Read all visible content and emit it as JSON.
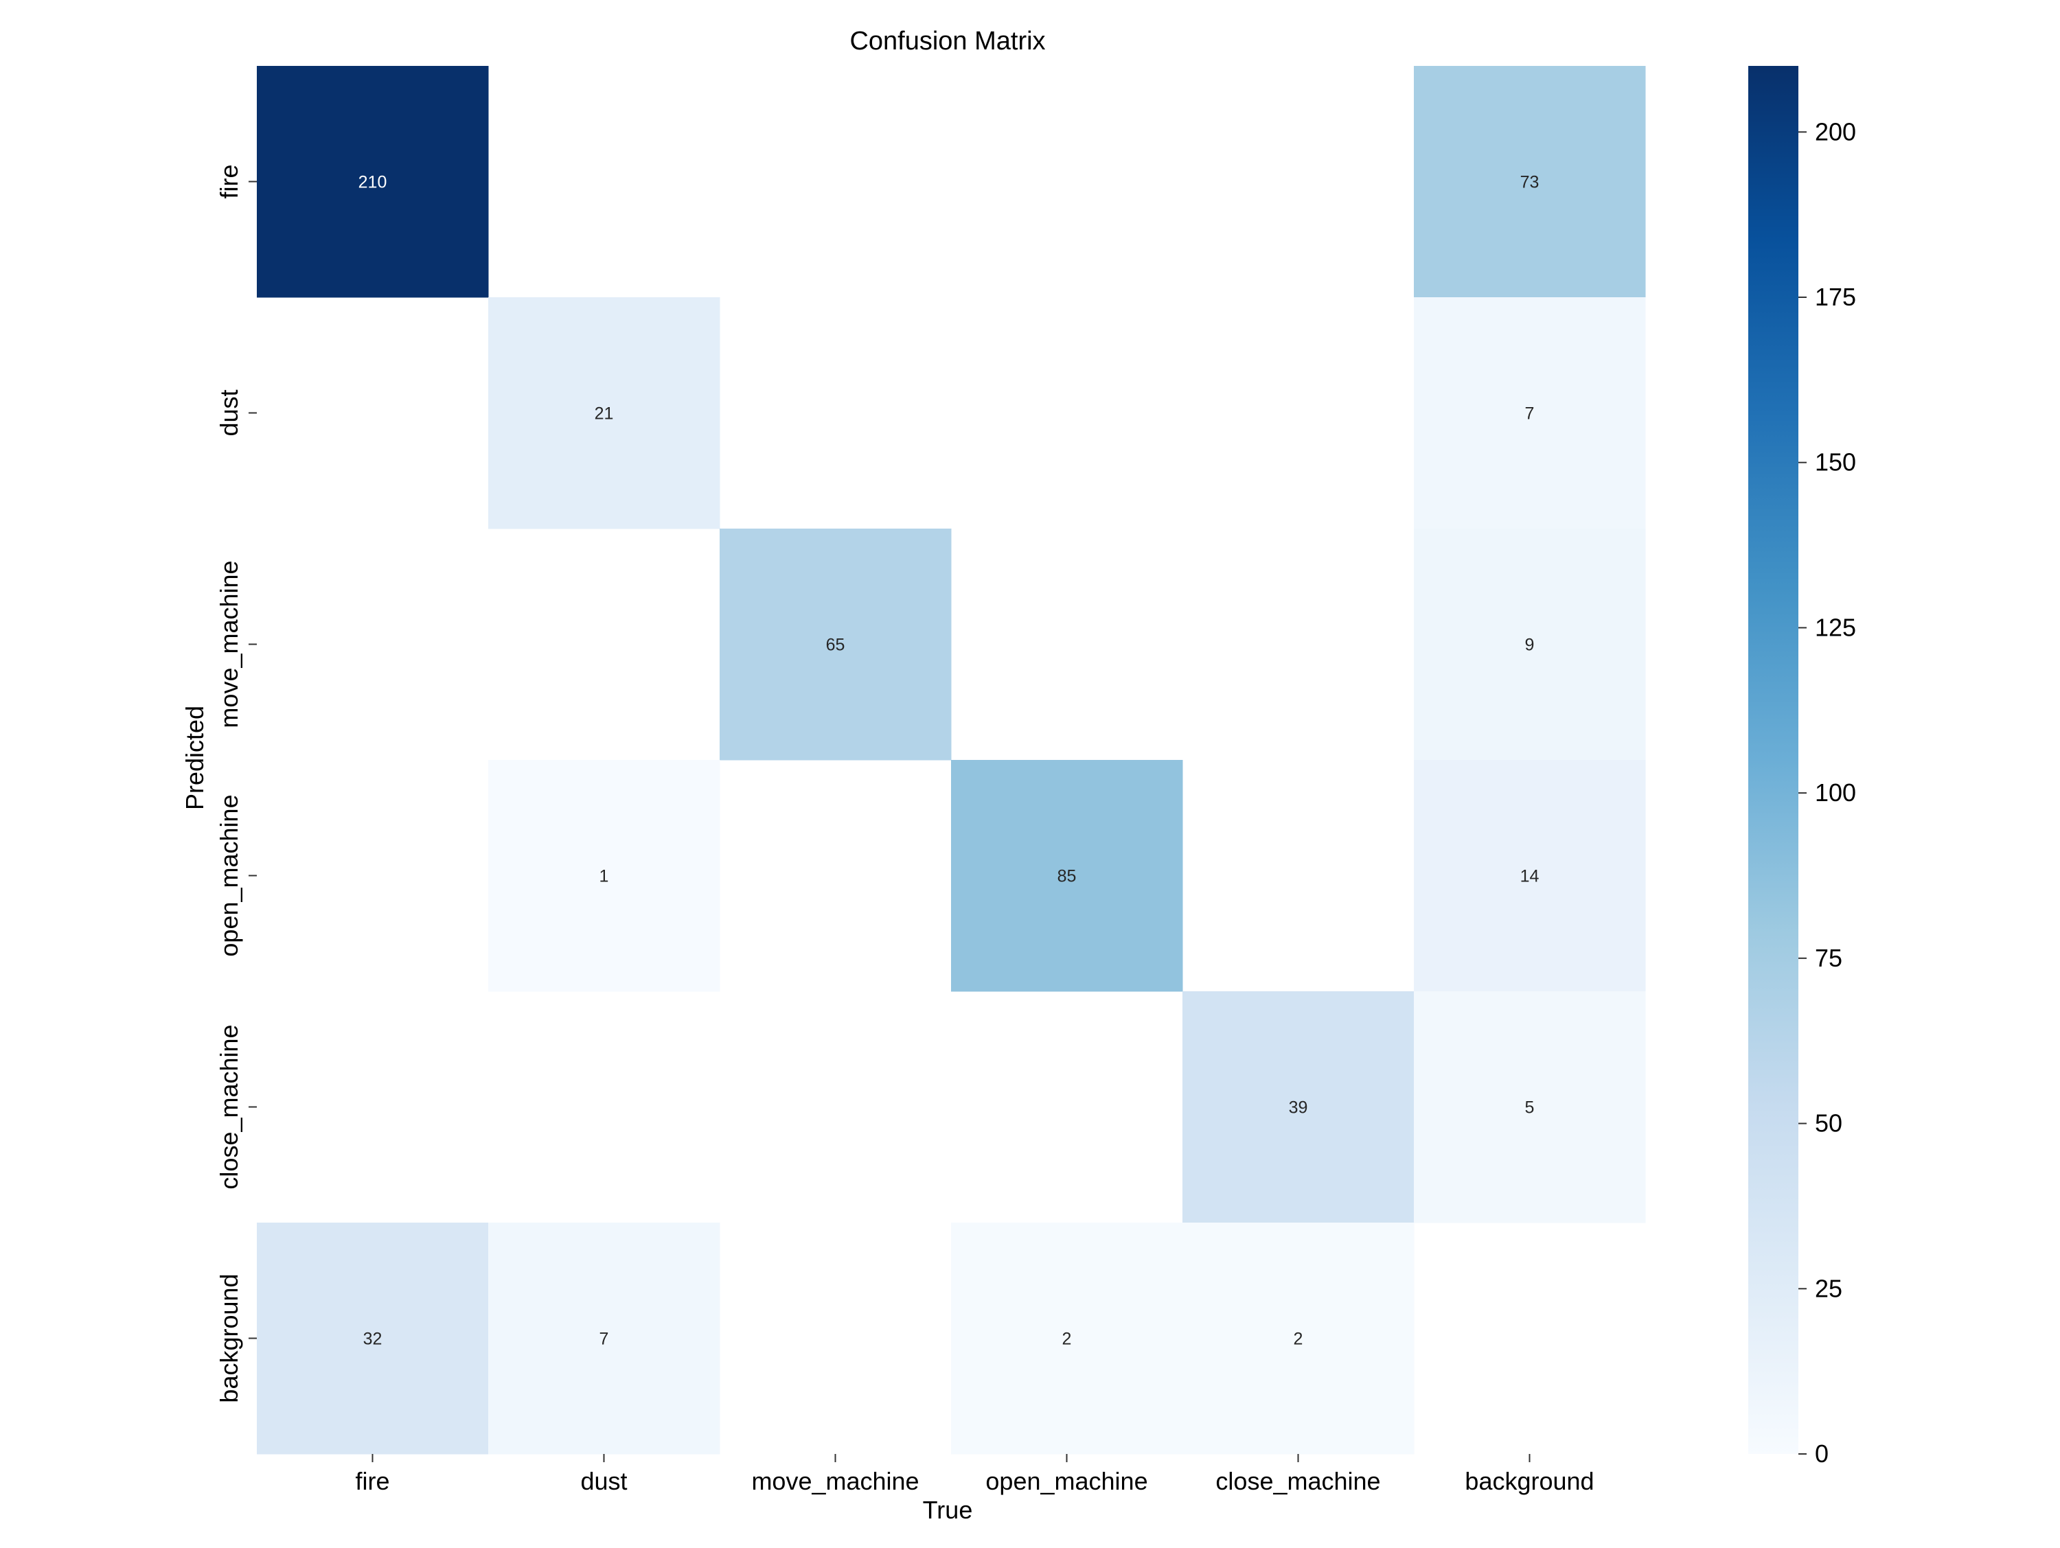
{
  "chart_data": {
    "type": "heatmap",
    "title": "Confusion Matrix",
    "xlabel": "True",
    "ylabel": "Predicted",
    "x_categories": [
      "fire",
      "dust",
      "move_machine",
      "open_machine",
      "close_machine",
      "background"
    ],
    "y_categories": [
      "fire",
      "dust",
      "move_machine",
      "open_machine",
      "close_machine",
      "background"
    ],
    "values": [
      [
        210,
        null,
        null,
        null,
        null,
        73
      ],
      [
        null,
        21,
        null,
        null,
        null,
        7
      ],
      [
        null,
        null,
        65,
        null,
        null,
        9
      ],
      [
        null,
        1,
        null,
        85,
        null,
        14
      ],
      [
        null,
        null,
        null,
        null,
        39,
        5
      ],
      [
        32,
        7,
        null,
        2,
        2,
        null
      ]
    ],
    "colorbar": {
      "min": 0,
      "max": 210,
      "ticks": [
        0,
        25,
        50,
        75,
        100,
        125,
        150,
        175,
        200
      ],
      "colormap": "Blues"
    },
    "grid": false
  }
}
